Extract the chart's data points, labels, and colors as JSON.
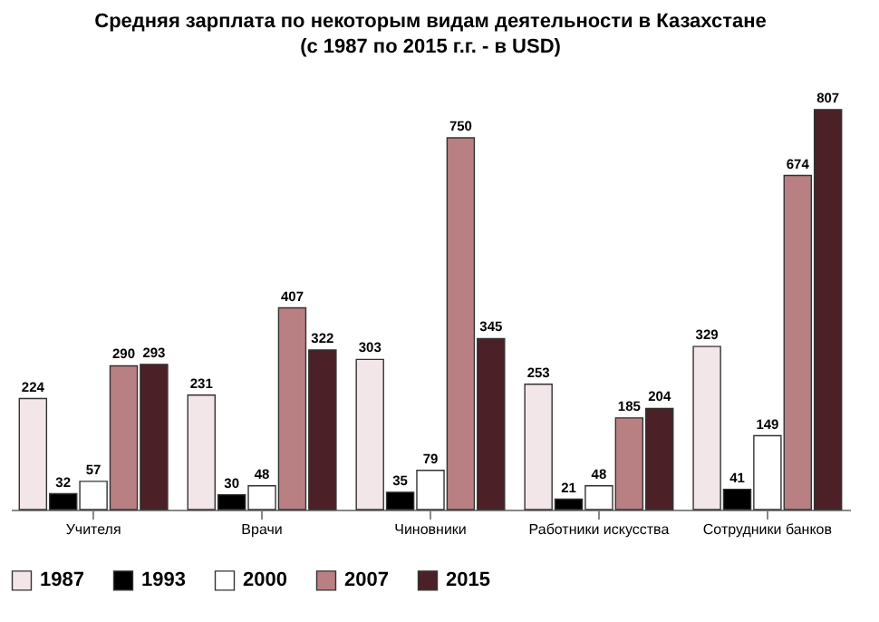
{
  "chart_data": {
    "type": "bar",
    "title": "Средняя зарплата по некоторым видам деятельности в Казахстане",
    "subtitle": "(с 1987 по 2015 г.г. - в USD)",
    "categories": [
      "Учителя",
      "Врачи",
      "Чиновники",
      "Работники искусства",
      "Сотрудники банков"
    ],
    "series": [
      {
        "name": "1987",
        "color": "#f3e6e8",
        "values": [
          224,
          231,
          303,
          253,
          329
        ]
      },
      {
        "name": "1993",
        "color": "#000000",
        "values": [
          32,
          30,
          35,
          21,
          41
        ]
      },
      {
        "name": "2000",
        "color": "#ffffff",
        "values": [
          57,
          48,
          79,
          48,
          149
        ]
      },
      {
        "name": "2007",
        "color": "#b98084",
        "values": [
          290,
          407,
          750,
          185,
          674
        ]
      },
      {
        "name": "2015",
        "color": "#4b2127",
        "values": [
          293,
          322,
          345,
          204,
          807
        ]
      }
    ],
    "data_labels": true,
    "legend": "bottom",
    "grid": false
  }
}
